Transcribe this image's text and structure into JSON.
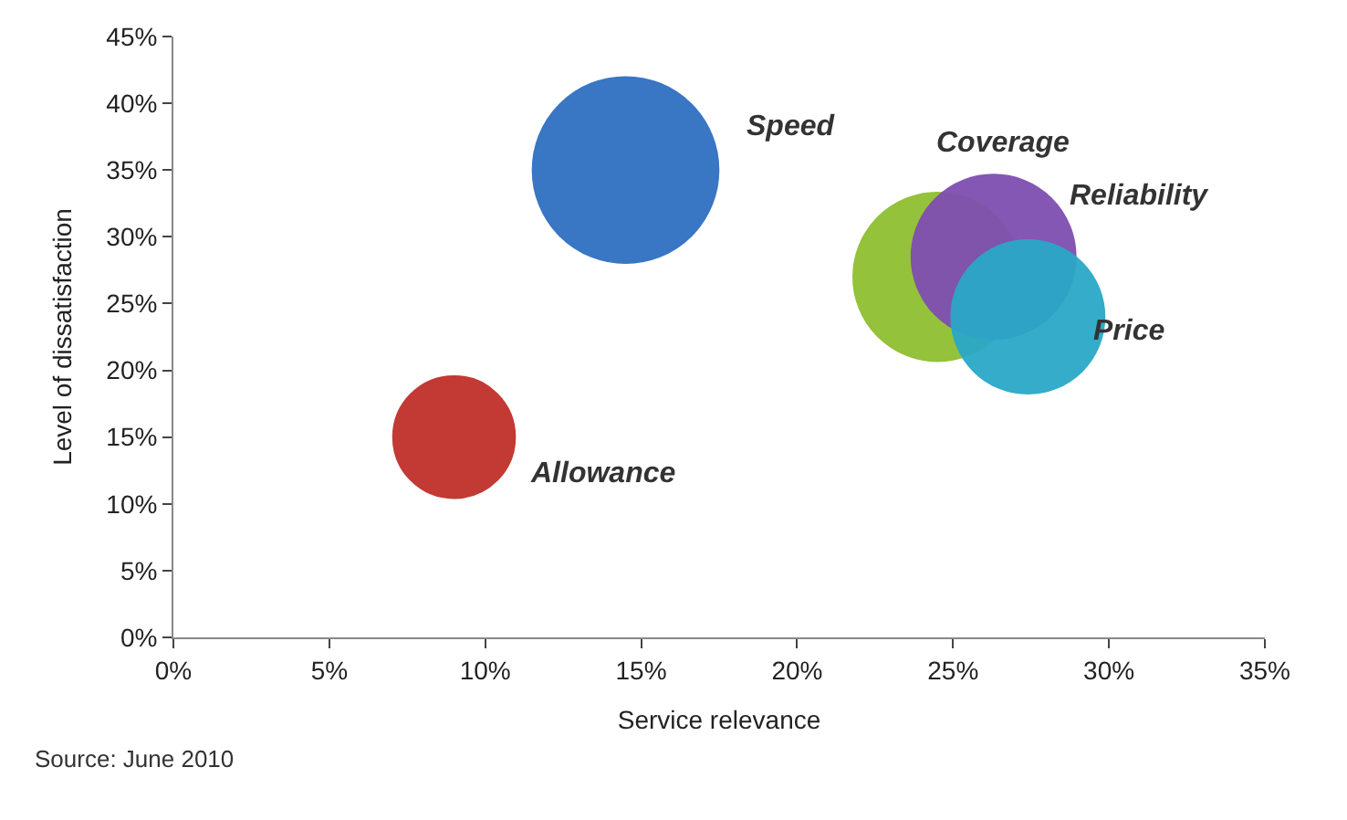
{
  "chart_data": {
    "type": "bubble",
    "xlabel": "Service relevance",
    "ylabel": "Level of dissatisfaction",
    "series": [
      {
        "name": "Speed",
        "color": "#2f6fc0",
        "x": [
          14.5
        ],
        "values": [
          35
        ],
        "sizes": [
          1
        ]
      },
      {
        "name": "Coverage",
        "color": "#8fbf30",
        "x": [
          24.5
        ],
        "values": [
          27
        ],
        "sizes": [
          0.82
        ]
      },
      {
        "name": "Reliability",
        "color": "#7f4fb0",
        "x": [
          26.3
        ],
        "values": [
          28.5
        ],
        "sizes": [
          0.78
        ]
      },
      {
        "name": "Price",
        "color": "#2aa8c8",
        "x": [
          27.4
        ],
        "values": [
          24
        ],
        "sizes": [
          0.68
        ]
      },
      {
        "name": "Allowance",
        "color": "#c0302a",
        "x": [
          9
        ],
        "values": [
          15
        ],
        "sizes": [
          0.43
        ]
      }
    ],
    "xlim": [
      0,
      35
    ],
    "xticks": [
      {
        "value": 0,
        "label": "0%"
      },
      {
        "value": 5,
        "label": "5%"
      },
      {
        "value": 10,
        "label": "10%"
      },
      {
        "value": 15,
        "label": "15%"
      },
      {
        "value": 20,
        "label": "20%"
      },
      {
        "value": 25,
        "label": "25%"
      },
      {
        "value": 30,
        "label": "30%"
      },
      {
        "value": 35,
        "label": "35%"
      }
    ],
    "ylim": [
      0,
      45
    ],
    "yticks": [
      {
        "value": 0,
        "label": "0%"
      },
      {
        "value": 5,
        "label": "5%"
      },
      {
        "value": 10,
        "label": "10%"
      },
      {
        "value": 15,
        "label": "15%"
      },
      {
        "value": 20,
        "label": "20%"
      },
      {
        "value": 25,
        "label": "25%"
      },
      {
        "value": 30,
        "label": "30%"
      },
      {
        "value": 35,
        "label": "35%"
      },
      {
        "value": 40,
        "label": "40%"
      },
      {
        "value": 45,
        "label": "45%"
      }
    ],
    "annotations": [
      "Source: June 2010"
    ],
    "legend": false
  }
}
